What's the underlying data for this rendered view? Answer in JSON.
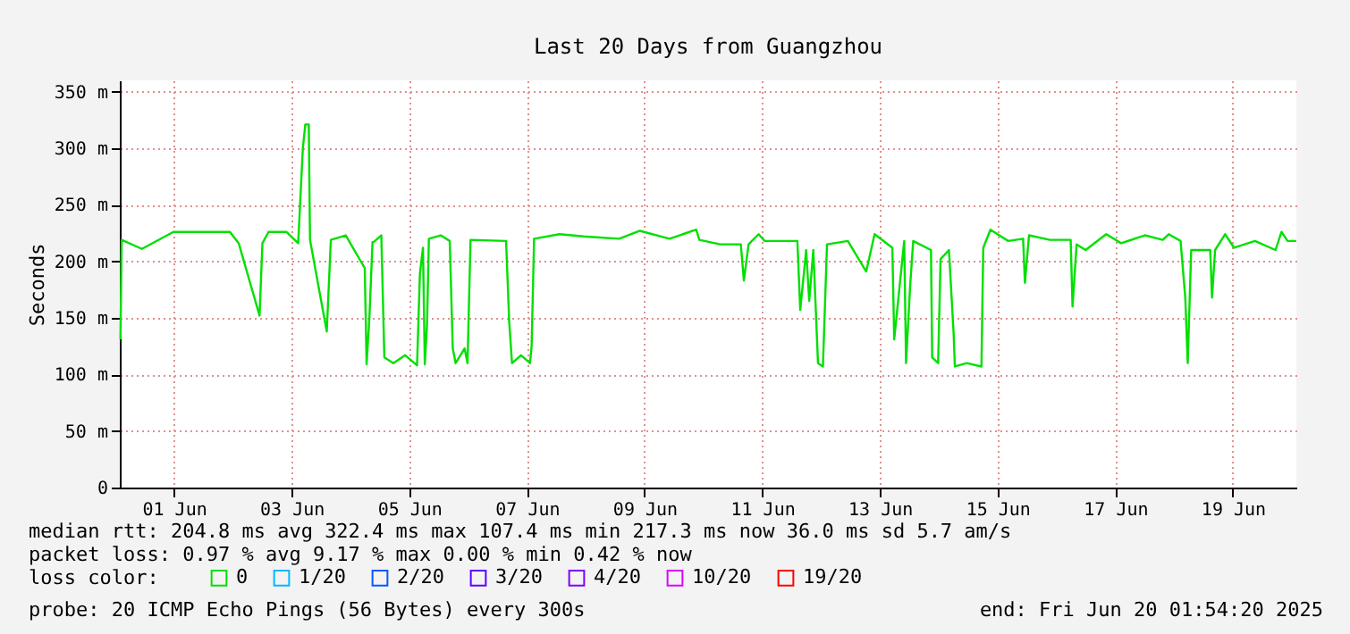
{
  "chart_data": {
    "type": "line",
    "title": "Last 20 Days from Guangzhou",
    "ylabel": "Seconds",
    "legend_title": "loss color:",
    "legend": "bottom",
    "grid": true,
    "marker": "none",
    "line_style": "solid",
    "xlim": [
      "2025-05-31T01:54",
      "2025-06-20T01:54"
    ],
    "xticks": [
      {
        "value": "2025-06-01",
        "label": "01 Jun"
      },
      {
        "value": "2025-06-03",
        "label": "03 Jun"
      },
      {
        "value": "2025-06-05",
        "label": "05 Jun"
      },
      {
        "value": "2025-06-07",
        "label": "07 Jun"
      },
      {
        "value": "2025-06-09",
        "label": "09 Jun"
      },
      {
        "value": "2025-06-11",
        "label": "11 Jun"
      },
      {
        "value": "2025-06-13",
        "label": "13 Jun"
      },
      {
        "value": "2025-06-15",
        "label": "15 Jun"
      },
      {
        "value": "2025-06-17",
        "label": "17 Jun"
      },
      {
        "value": "2025-06-19",
        "label": "19 Jun"
      }
    ],
    "ylim": [
      0,
      360
    ],
    "yticks": [
      {
        "value": 0,
        "label": "0"
      },
      {
        "value": 50,
        "label": "50 m"
      },
      {
        "value": 100,
        "label": "100 m"
      },
      {
        "value": 150,
        "label": "150 m"
      },
      {
        "value": 200,
        "label": "200 m"
      },
      {
        "value": 250,
        "label": "250 m"
      },
      {
        "value": 300,
        "label": "300 m"
      },
      {
        "value": 350,
        "label": "350 m"
      }
    ],
    "x": [
      "2025-05-31T02:10",
      "2025-05-31T02:40",
      "2025-05-31T10:55",
      "2025-05-31T23:45",
      "2025-06-01T22:50",
      "2025-06-02T02:25",
      "2025-06-02T10:55",
      "2025-06-02T12:05",
      "2025-06-02T14:35",
      "2025-06-02T21:50",
      "2025-06-03T02:40",
      "2025-06-03T04:35",
      "2025-06-03T05:35",
      "2025-06-03T07:00",
      "2025-06-03T07:30",
      "2025-06-03T14:20",
      "2025-06-03T16:00",
      "2025-06-03T22:05",
      "2025-06-04T05:50",
      "2025-06-04T06:35",
      "2025-06-04T07:45",
      "2025-06-04T09:00",
      "2025-06-04T09:25",
      "2025-06-04T12:35",
      "2025-06-04T13:50",
      "2025-06-04T17:30",
      "2025-06-04T22:20",
      "2025-06-05T03:10",
      "2025-06-05T04:20",
      "2025-06-05T05:35",
      "2025-06-05T06:20",
      "2025-06-05T07:15",
      "2025-06-05T08:00",
      "2025-06-05T12:50",
      "2025-06-05T16:30",
      "2025-06-05T17:45",
      "2025-06-05T18:55",
      "2025-06-05T22:35",
      "2025-06-05T23:45",
      "2025-06-06T01:00",
      "2025-06-06T15:30",
      "2025-06-06T16:45",
      "2025-06-06T17:55",
      "2025-06-06T21:35",
      "2025-06-07T01:15",
      "2025-06-07T01:55",
      "2025-06-07T02:55",
      "2025-06-07T13:20",
      "2025-06-07T23:00",
      "2025-06-08T13:35",
      "2025-06-08T22:05",
      "2025-06-09T10:10",
      "2025-06-09T21:05",
      "2025-06-09T22:20",
      "2025-06-10T06:50",
      "2025-06-10T15:15",
      "2025-06-10T16:30",
      "2025-06-10T18:25",
      "2025-06-10T22:30",
      "2025-06-11T01:00",
      "2025-06-11T14:20",
      "2025-06-11T15:30",
      "2025-06-11T17:55",
      "2025-06-11T19:10",
      "2025-06-11T20:50",
      "2025-06-11T22:45",
      "2025-06-12T00:45",
      "2025-06-12T02:25",
      "2025-06-12T10:55",
      "2025-06-12T18:25",
      "2025-06-12T21:50",
      "2025-06-13T05:05",
      "2025-06-13T05:50",
      "2025-06-13T09:55",
      "2025-06-13T10:40",
      "2025-06-13T12:20",
      "2025-06-13T13:35",
      "2025-06-13T20:50",
      "2025-06-13T21:20",
      "2025-06-13T23:45",
      "2025-06-14T00:45",
      "2025-06-14T04:10",
      "2025-06-14T06:05",
      "2025-06-14T06:35",
      "2025-06-14T11:25",
      "2025-06-14T17:25",
      "2025-06-14T18:10",
      "2025-06-14T21:05",
      "2025-06-15T04:20",
      "2025-06-15T10:25",
      "2025-06-15T11:10",
      "2025-06-15T12:50",
      "2025-06-15T21:20",
      "2025-06-16T05:50",
      "2025-06-16T06:35",
      "2025-06-16T08:15",
      "2025-06-16T11:55",
      "2025-06-16T20:20",
      "2025-06-17T02:25",
      "2025-06-17T12:05",
      "2025-06-17T19:25",
      "2025-06-17T21:50",
      "2025-06-18T02:40",
      "2025-06-18T04:35",
      "2025-06-18T05:35",
      "2025-06-18T07:00",
      "2025-06-18T14:45",
      "2025-06-18T15:30",
      "2025-06-18T16:45",
      "2025-06-18T20:50",
      "2025-06-19T00:30",
      "2025-06-19T09:00",
      "2025-06-19T17:25",
      "2025-06-19T19:50",
      "2025-06-19T22:20",
      "2025-06-20T01:50"
    ],
    "series": [
      {
        "name": "0",
        "color": "#00e000",
        "values": [
          131,
          219,
          211,
          226,
          226,
          216,
          152,
          216,
          226,
          226,
          216,
          300,
          321,
          321,
          219,
          138,
          219,
          223,
          194,
          109,
          151,
          217,
          217,
          223,
          115,
          110,
          117,
          108,
          189,
          212,
          109,
          145,
          220,
          223,
          218,
          123,
          110,
          123,
          110,
          219,
          218,
          147,
          110,
          117,
          110,
          125,
          220,
          224,
          222,
          220,
          227,
          220,
          228,
          219,
          215,
          215,
          183,
          215,
          224,
          218,
          218,
          157,
          210,
          165,
          210,
          110,
          107,
          215,
          218,
          191,
          224,
          212,
          131,
          218,
          110,
          178,
          218,
          210,
          115,
          110,
          202,
          210,
          136,
          107,
          110,
          107,
          212,
          228,
          218,
          220,
          181,
          223,
          219,
          219,
          160,
          215,
          210,
          224,
          216,
          223,
          219,
          224,
          218,
          168,
          110,
          210,
          210,
          168,
          210,
          224,
          212,
          218,
          210,
          226,
          218,
          218
        ]
      },
      {
        "name": "1/20",
        "color": "#00b8ff",
        "values": [
          null,
          null,
          null,
          null,
          null,
          null,
          null,
          null,
          null,
          null,
          null,
          null,
          null,
          null,
          null,
          null,
          null,
          null,
          null,
          null,
          null,
          null,
          null,
          null,
          null,
          null,
          null,
          null,
          null,
          null,
          null,
          null,
          null,
          null,
          null,
          null,
          null,
          null,
          null,
          null,
          null,
          null,
          null,
          null,
          null,
          null,
          null,
          null,
          null,
          null,
          null,
          null,
          null,
          null,
          null,
          null,
          null,
          null,
          null,
          null,
          null,
          null,
          null,
          null,
          null,
          null,
          null,
          null,
          null,
          null,
          null,
          null,
          null,
          null,
          null,
          null,
          null,
          null,
          null,
          null,
          null,
          null,
          null,
          null,
          null,
          null,
          null,
          null,
          null,
          null,
          null,
          null,
          null,
          null,
          null,
          null,
          null,
          null,
          null,
          null,
          null,
          null,
          null,
          null,
          null,
          null,
          null,
          null,
          null,
          null,
          null,
          null,
          null,
          null,
          null,
          null
        ]
      },
      {
        "name": "2/20",
        "color": "#0059ff",
        "values": [
          null,
          null,
          null,
          null,
          null,
          null,
          null,
          null,
          null,
          null,
          null,
          null,
          null,
          null,
          null,
          null,
          null,
          null,
          null,
          null,
          null,
          null,
          null,
          null,
          null,
          null,
          null,
          null,
          null,
          null,
          null,
          null,
          null,
          null,
          null,
          null,
          null,
          null,
          null,
          null,
          null,
          null,
          null,
          null,
          null,
          null,
          null,
          null,
          null,
          null,
          null,
          null,
          null,
          null,
          null,
          null,
          null,
          null,
          null,
          null,
          null,
          null,
          null,
          null,
          null,
          null,
          null,
          null,
          null,
          null,
          null,
          null,
          null,
          null,
          null,
          null,
          null,
          null,
          null,
          null,
          null,
          null,
          null,
          null,
          null,
          null,
          null,
          null,
          null,
          null,
          null,
          null,
          null,
          null,
          null,
          null,
          null,
          null,
          null,
          null,
          null,
          null,
          null,
          null,
          null,
          null,
          null,
          null,
          null,
          null,
          null,
          null,
          null,
          null,
          null,
          null
        ]
      },
      {
        "name": "3/20",
        "color": "#5e00ff",
        "values": [
          null,
          null,
          null,
          null,
          null,
          null,
          null,
          null,
          null,
          null,
          null,
          null,
          null,
          null,
          null,
          null,
          null,
          null,
          null,
          null,
          null,
          null,
          null,
          null,
          null,
          null,
          null,
          null,
          null,
          null,
          null,
          null,
          null,
          null,
          null,
          null,
          null,
          null,
          null,
          null,
          null,
          null,
          null,
          null,
          null,
          null,
          null,
          null,
          null,
          null,
          null,
          null,
          null,
          null,
          null,
          null,
          null,
          null,
          null,
          null,
          null,
          null,
          null,
          null,
          null,
          null,
          null,
          null,
          null,
          null,
          null,
          null,
          null,
          null,
          null,
          null,
          null,
          null,
          null,
          null,
          null,
          null,
          null,
          null,
          null,
          null,
          null,
          null,
          null,
          null,
          null,
          null,
          null,
          null,
          null,
          null,
          null,
          null,
          null,
          null,
          null,
          null,
          null,
          null,
          null,
          null,
          null,
          null,
          null,
          null,
          null,
          null,
          null,
          null,
          null,
          null
        ]
      },
      {
        "name": "4/20",
        "color": "#7e00ff",
        "values": [
          null,
          null,
          null,
          null,
          null,
          null,
          null,
          null,
          null,
          null,
          null,
          null,
          null,
          null,
          null,
          null,
          null,
          null,
          null,
          null,
          null,
          null,
          null,
          null,
          null,
          null,
          null,
          null,
          null,
          null,
          null,
          null,
          null,
          null,
          null,
          null,
          null,
          null,
          null,
          null,
          null,
          null,
          null,
          null,
          null,
          null,
          null,
          null,
          null,
          null,
          null,
          null,
          null,
          null,
          null,
          null,
          null,
          null,
          null,
          null,
          null,
          null,
          null,
          null,
          null,
          null,
          null,
          null,
          null,
          null,
          null,
          null,
          null,
          null,
          null,
          null,
          null,
          null,
          null,
          null,
          null,
          null,
          null,
          null,
          null,
          null,
          null,
          null,
          null,
          null,
          null,
          null,
          null,
          null,
          null,
          null,
          null,
          null,
          null,
          null,
          null,
          null,
          null,
          null,
          null,
          null,
          null,
          null,
          null,
          null,
          null,
          null,
          null,
          null,
          null,
          null
        ]
      },
      {
        "name": "10/20",
        "color": "#dd00ff",
        "values": [
          null,
          null,
          null,
          null,
          null,
          null,
          null,
          null,
          null,
          null,
          null,
          null,
          null,
          null,
          null,
          null,
          null,
          null,
          null,
          null,
          null,
          null,
          null,
          null,
          null,
          null,
          null,
          null,
          null,
          null,
          null,
          null,
          null,
          null,
          null,
          null,
          null,
          null,
          null,
          null,
          null,
          null,
          null,
          null,
          null,
          null,
          null,
          null,
          null,
          null,
          null,
          null,
          null,
          null,
          null,
          null,
          null,
          null,
          null,
          null,
          null,
          null,
          null,
          null,
          null,
          null,
          null,
          null,
          null,
          null,
          null,
          null,
          null,
          null,
          null,
          null,
          null,
          null,
          null,
          null,
          null,
          null,
          null,
          null,
          null,
          null,
          null,
          null,
          null,
          null,
          null,
          null,
          null,
          null,
          null,
          null,
          null,
          null,
          null,
          null,
          null,
          null,
          null,
          null,
          null,
          null,
          null,
          null,
          null,
          null,
          null,
          null,
          null,
          null,
          null,
          null
        ]
      },
      {
        "name": "19/20",
        "color": "#ff0000",
        "values": [
          null,
          null,
          null,
          null,
          null,
          null,
          null,
          null,
          null,
          null,
          null,
          null,
          null,
          null,
          null,
          null,
          null,
          null,
          null,
          null,
          null,
          null,
          null,
          null,
          null,
          null,
          null,
          null,
          null,
          null,
          null,
          null,
          null,
          null,
          null,
          null,
          null,
          null,
          null,
          null,
          null,
          null,
          null,
          null,
          null,
          null,
          null,
          null,
          null,
          null,
          null,
          null,
          null,
          null,
          null,
          null,
          null,
          null,
          null,
          null,
          null,
          null,
          null,
          null,
          null,
          null,
          null,
          null,
          null,
          null,
          null,
          null,
          null,
          null,
          null,
          null,
          null,
          null,
          null,
          null,
          null,
          null,
          null,
          null,
          null,
          null,
          null,
          null,
          null,
          null,
          null,
          null,
          null,
          null,
          null,
          null,
          null,
          null,
          null,
          null,
          null,
          null,
          null,
          null,
          null,
          null,
          null,
          null,
          null,
          null,
          null,
          null,
          null,
          null,
          null,
          null
        ]
      }
    ],
    "annotations": [
      "median rtt:  204.8 ms avg  322.4 ms max  107.4 ms min  217.3 ms now  36.0 ms sd  5.7   am/s",
      "packet loss: 0.97 % avg  9.17 % max  0.00 % min  0.42 % now",
      "probe:       20 ICMP Echo Pings (56 Bytes) every 300s",
      "end: Fri Jun 20 01:54:20 2025"
    ]
  }
}
